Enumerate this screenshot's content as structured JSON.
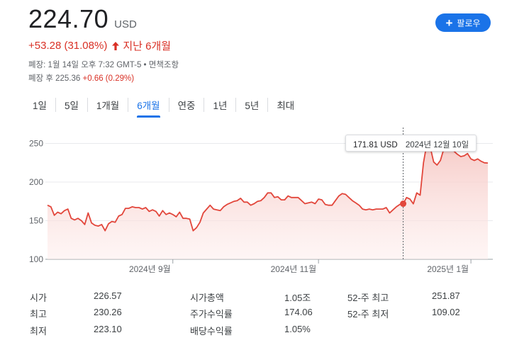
{
  "quote": {
    "price": "224.70",
    "currency": "USD",
    "change": "+53.28 (31.08%)",
    "period_change": "지난 6개월",
    "closed_info": "폐장: 1월 14일 오후 7:32 GMT-5 • 면책조항",
    "after_hours_label": "폐장 후 225.36",
    "after_hours_change": "+0.66 (0.29%)"
  },
  "follow_button": {
    "label": "팔로우"
  },
  "tabs": [
    {
      "label": "1일"
    },
    {
      "label": "5일"
    },
    {
      "label": "1개월"
    },
    {
      "label": "6개월",
      "active": true
    },
    {
      "label": "연중"
    },
    {
      "label": "1년"
    },
    {
      "label": "5년"
    },
    {
      "label": "최대"
    }
  ],
  "tooltip": {
    "price": "171.81 USD",
    "date": "2024년 12월 10일"
  },
  "chart_data": {
    "type": "area",
    "y_ticks": [
      100,
      150,
      200,
      250
    ],
    "y_tick_labels": [
      "100",
      "150",
      "200",
      "250"
    ],
    "ylim": [
      100,
      260
    ],
    "x_ticks": [
      {
        "label": "2024년 9월",
        "index": 37
      },
      {
        "label": "2024년 11월",
        "index": 80
      },
      {
        "label": "2025년 1월",
        "index": 125
      }
    ],
    "baseline": 171.81,
    "line_color": "#e2463b",
    "hover_index": 105,
    "series": [
      {
        "values": [
          170,
          168,
          157,
          161,
          159,
          163,
          165,
          153,
          151,
          153,
          150,
          145,
          160,
          147,
          144,
          143,
          145,
          137,
          146,
          149,
          148,
          156,
          158,
          166,
          166,
          168,
          167,
          167,
          165,
          167,
          162,
          164,
          162,
          156,
          163,
          158,
          160,
          158,
          155,
          161,
          153,
          153,
          152,
          137,
          141,
          148,
          160,
          165,
          170,
          165,
          164,
          163,
          168,
          171,
          173,
          175,
          176,
          179,
          174,
          174,
          170,
          172,
          175,
          176,
          180,
          186,
          186,
          180,
          181,
          177,
          177,
          182,
          180,
          180,
          180,
          176,
          172,
          173,
          174,
          172,
          178,
          177,
          171,
          170,
          170,
          176,
          182,
          185,
          184,
          180,
          176,
          173,
          170,
          165,
          164,
          165,
          164,
          165,
          165,
          165,
          167,
          160,
          164,
          168,
          171,
          172,
          180,
          178,
          171.81,
          186,
          183,
          225,
          250,
          245,
          226,
          222,
          228,
          243,
          254,
          250,
          240,
          236,
          233,
          234,
          237,
          230,
          228,
          230,
          227,
          225,
          224.7
        ]
      }
    ]
  },
  "stats": [
    {
      "label": "시가",
      "value": "226.57"
    },
    {
      "label": "최고",
      "value": "230.26"
    },
    {
      "label": "최저",
      "value": "223.10"
    },
    {
      "label": "시가총액",
      "value": "1.05조"
    },
    {
      "label": "주가수익률",
      "value": "174.06"
    },
    {
      "label": "배당수익률",
      "value": "1.05%"
    },
    {
      "label": "52-주 최고",
      "value": "251.87"
    },
    {
      "label": "52-주 최저",
      "value": "109.02"
    }
  ]
}
